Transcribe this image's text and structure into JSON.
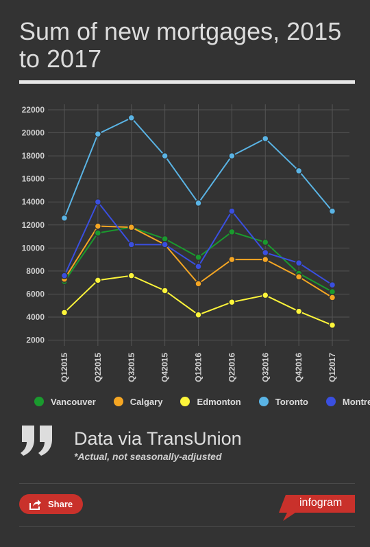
{
  "chart_data": {
    "type": "line",
    "title": "Sum of new mortgages, 2015 to 2017",
    "categories": [
      "Q12015",
      "Q22015",
      "Q32015",
      "Q42015",
      "Q12016",
      "Q22016",
      "Q32016",
      "Q42016",
      "Q12017"
    ],
    "y_ticks": [
      "22000",
      "20000",
      "18000",
      "16000",
      "14000",
      "12000",
      "10000",
      "8000",
      "6000",
      "4000",
      "2000"
    ],
    "ylim": [
      1500,
      22000
    ],
    "grid": true,
    "legend_position": "bottom",
    "series": [
      {
        "name": "Vancouver",
        "color": "#1a9a2e",
        "values": [
          7100,
          11300,
          11800,
          10800,
          9200,
          11400,
          10500,
          7800,
          6200
        ]
      },
      {
        "name": "Calgary",
        "color": "#f5a623",
        "values": [
          7300,
          11900,
          11800,
          10300,
          6900,
          9000,
          9000,
          7500,
          5700
        ]
      },
      {
        "name": "Edmonton",
        "color": "#fdf53a",
        "values": [
          4400,
          7200,
          7600,
          6300,
          4200,
          5300,
          5900,
          4500,
          3300
        ]
      },
      {
        "name": "Toronto",
        "color": "#5ab4e5",
        "values": [
          12600,
          19900,
          21300,
          18000,
          13900,
          18000,
          19500,
          16700,
          13200
        ]
      },
      {
        "name": "Montreal",
        "color": "#3a4fe0",
        "values": [
          7600,
          14000,
          10300,
          10300,
          8400,
          13200,
          9600,
          8700,
          6800
        ]
      }
    ]
  },
  "source": "Data via TransUnion",
  "note": "*Actual, not seasonally-adjusted",
  "share_label": "Share",
  "brand": "infogram",
  "icons": {
    "quote": "quote-icon",
    "share": "share-icon"
  }
}
